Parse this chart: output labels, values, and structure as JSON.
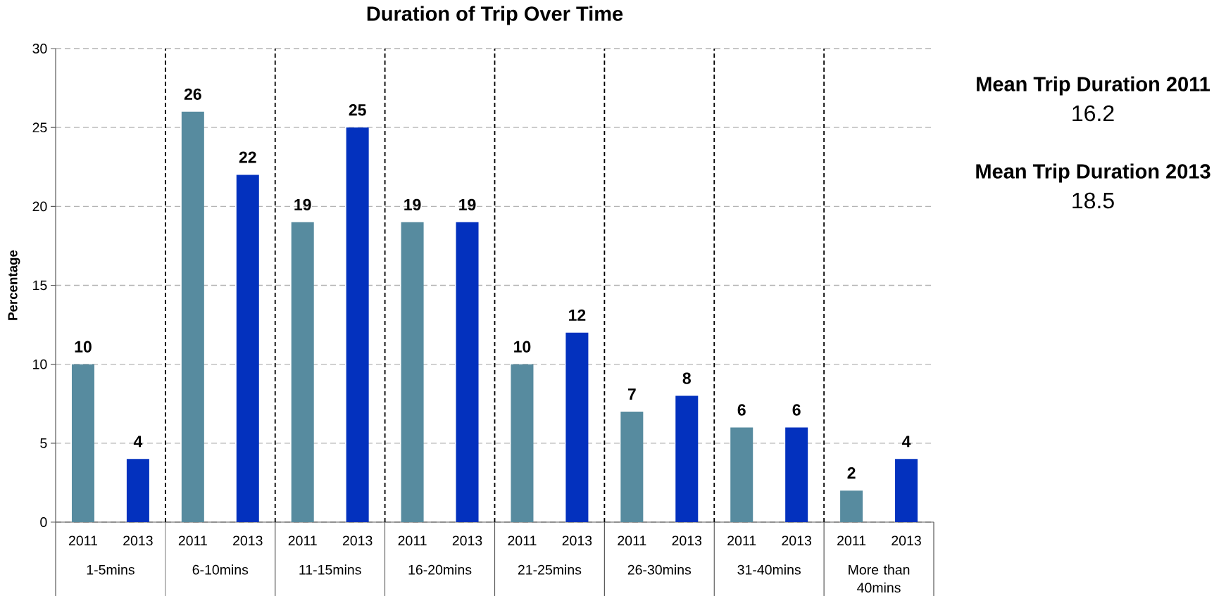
{
  "chart_data": {
    "type": "bar",
    "title": "Duration of Trip Over Time",
    "ylabel": "Percentage",
    "categories": [
      "1-5mins",
      "6-10mins",
      "11-15mins",
      "16-20mins",
      "21-25mins",
      "26-30mins",
      "31-40mins",
      "More than 40mins"
    ],
    "series": [
      {
        "name": "2011",
        "color": "#578b9f",
        "values": [
          10,
          26,
          19,
          19,
          10,
          7,
          6,
          2
        ]
      },
      {
        "name": "2013",
        "color": "#0331be",
        "values": [
          4,
          22,
          25,
          19,
          12,
          8,
          6,
          4
        ]
      }
    ],
    "ylim": [
      0,
      30
    ],
    "yticks": [
      0,
      5,
      10,
      15,
      20,
      25,
      30
    ],
    "grid": true,
    "data_labels": true,
    "annotations": [
      "Mean Trip Duration 2011",
      "16.2",
      "Mean Trip Duration 2013",
      "18.5"
    ]
  }
}
